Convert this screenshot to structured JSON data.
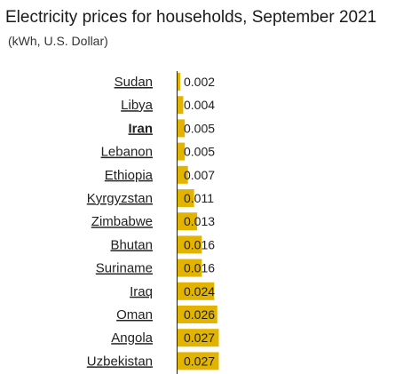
{
  "chart_data": {
    "type": "bar",
    "orientation": "horizontal",
    "title": "Electricity prices for households, September 2021",
    "subtitle": "(kWh, U.S. Dollar)",
    "categories": [
      "Sudan",
      "Libya",
      "Iran",
      "Lebanon",
      "Ethiopia",
      "Kyrgyzstan",
      "Zimbabwe",
      "Bhutan",
      "Suriname",
      "Iraq",
      "Oman",
      "Angola",
      "Uzbekistan"
    ],
    "values": [
      0.002,
      0.004,
      0.005,
      0.005,
      0.007,
      0.011,
      0.013,
      0.016,
      0.016,
      0.024,
      0.026,
      0.027,
      0.027
    ],
    "value_labels": [
      "0.002",
      "0.004",
      "0.005",
      "0.005",
      "0.007",
      "0.011",
      "0.013",
      "0.016",
      "0.016",
      "0.024",
      "0.026",
      "0.027",
      "0.027"
    ],
    "highlighted": "Iran",
    "bar_color": "#e2b400",
    "axis_color": "#222222",
    "xlim": [
      0,
      0.027
    ],
    "grid": false,
    "legend": "none"
  }
}
